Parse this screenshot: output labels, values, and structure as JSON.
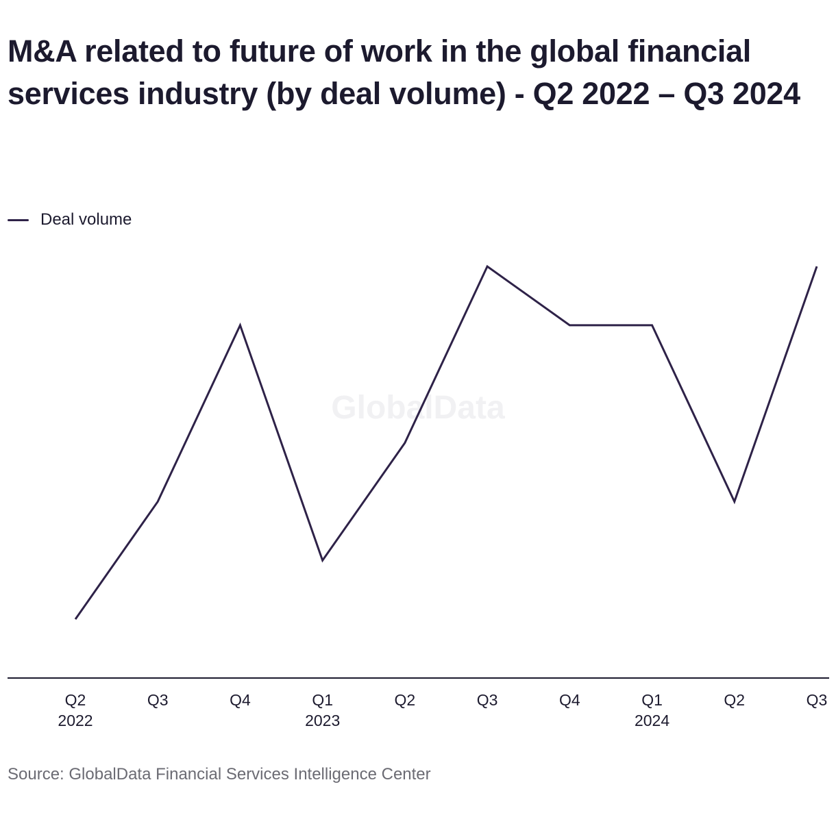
{
  "title": "M&A related to future of work in the global financial services industry (by deal volume) - Q2 2022 – Q3 2024",
  "source": "Source: GlobalData Financial Services Intelligence Center",
  "watermark": "GlobalData",
  "colors": {
    "line": "#2e2248",
    "axis": "#1c1a2e"
  },
  "chart_data": {
    "type": "line",
    "title": "M&A related to future of work in the global financial services industry (by deal volume) - Q2 2022 – Q3 2024",
    "xlabel": "",
    "ylabel": "",
    "grid": false,
    "legend_position": "top-left",
    "categories": [
      {
        "quarter": "Q2",
        "year": "2022"
      },
      {
        "quarter": "Q3",
        "year": ""
      },
      {
        "quarter": "Q4",
        "year": ""
      },
      {
        "quarter": "Q1",
        "year": "2023"
      },
      {
        "quarter": "Q2",
        "year": ""
      },
      {
        "quarter": "Q3",
        "year": ""
      },
      {
        "quarter": "Q4",
        "year": ""
      },
      {
        "quarter": "Q1",
        "year": "2024"
      },
      {
        "quarter": "Q2",
        "year": ""
      },
      {
        "quarter": "Q3",
        "year": ""
      }
    ],
    "ylim": [
      0,
      7
    ],
    "series": [
      {
        "name": "Deal volume",
        "values": [
          1,
          3,
          6,
          2,
          4,
          7,
          6,
          6,
          3,
          7
        ]
      }
    ]
  }
}
